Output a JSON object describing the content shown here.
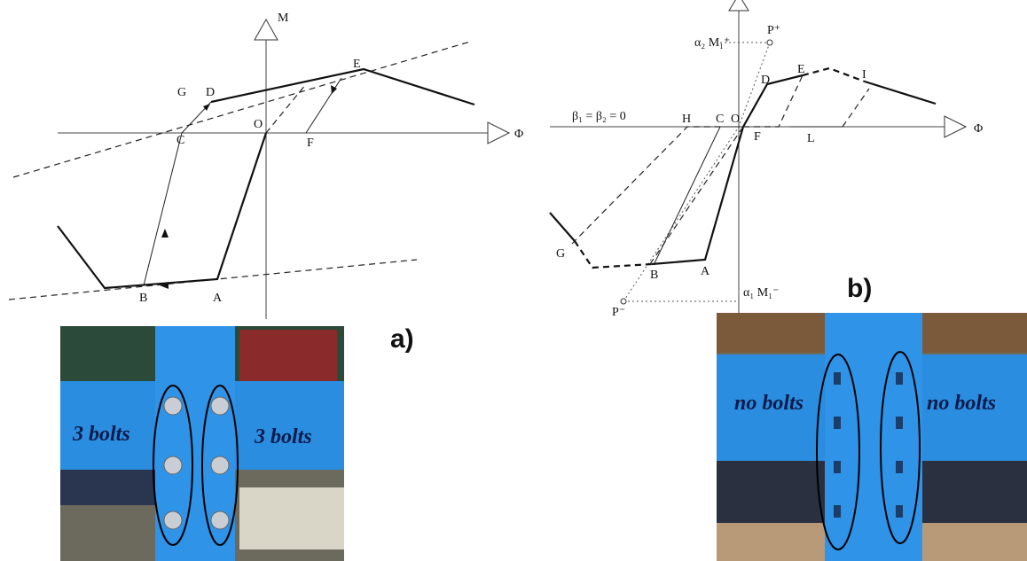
{
  "panel_a": {
    "label": "a)",
    "axis_y": "M",
    "axis_x": "Φ",
    "points": {
      "G": "G",
      "D": "D",
      "E": "E",
      "C": "C",
      "O": "O",
      "F": "F",
      "B": "B",
      "A": "A"
    },
    "photo_labels": [
      "3 bolts",
      "3 bolts"
    ]
  },
  "panel_b": {
    "label": "b)",
    "axis_x": "Φ",
    "condition": "β₁ = β₂ = 0",
    "upper_moment": "α₂ M₁⁺",
    "lower_moment": "α₁ M₁⁻",
    "p_plus": "P⁺",
    "p_minus": "P⁻",
    "points": {
      "D": "D",
      "E": "E",
      "I": "I",
      "H": "H",
      "C": "C",
      "O": "O",
      "F": "F",
      "L": "L",
      "G": "G",
      "B": "B",
      "A": "A"
    },
    "photo_labels": [
      "no bolts",
      "no bolts"
    ]
  }
}
